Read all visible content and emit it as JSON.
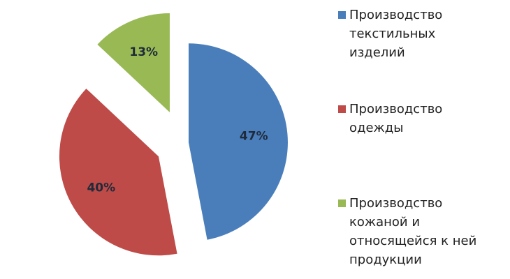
{
  "chart_data": {
    "type": "pie",
    "categories": [
      "Производство текстильных изделий",
      "Производство одежды",
      "Производство кожаной и относящейся к ней продукции"
    ],
    "values": [
      47,
      40,
      13
    ],
    "value_labels": [
      "47%",
      "40%",
      "13%"
    ],
    "colors": [
      "#4a7ebb",
      "#be4b48",
      "#98b954"
    ],
    "legend": "right"
  }
}
